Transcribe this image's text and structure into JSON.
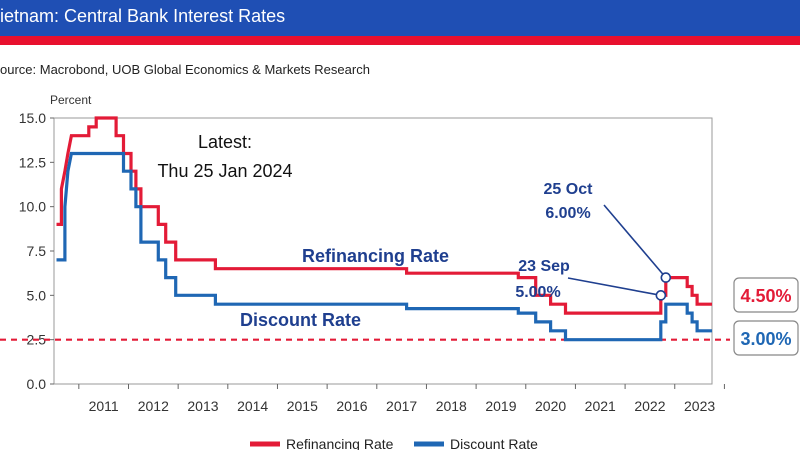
{
  "header": {
    "title": "ietnam: Central Bank Interest Rates",
    "brand_color": "#1f4fb4",
    "accent_color": "#e8102e"
  },
  "source": "ource: Macrobond, UOB Global Economics & Markets Research",
  "chart_data": {
    "type": "line",
    "ylabel": "Percent",
    "ylim": [
      0,
      15
    ],
    "xlim": [
      2010.5,
      2023.75
    ],
    "yticks": [
      "0.0",
      "2.5",
      "5.0",
      "7.5",
      "10.0",
      "12.5",
      "15.0"
    ],
    "xticks": [
      "2011",
      "2012",
      "2013",
      "2014",
      "2015",
      "2016",
      "2017",
      "2018",
      "2019",
      "2020",
      "2021",
      "2022",
      "2023"
    ],
    "grid": false,
    "legend_position": "bottom",
    "series": [
      {
        "name": "Refinancing Rate",
        "color": "#e31b37",
        "points": [
          [
            2010.55,
            9.0
          ],
          [
            2010.65,
            9.0
          ],
          [
            2010.65,
            11.0
          ],
          [
            2010.72,
            12.0
          ],
          [
            2010.78,
            13.0
          ],
          [
            2010.85,
            14.0
          ],
          [
            2011.2,
            14.0
          ],
          [
            2011.2,
            14.5
          ],
          [
            2011.35,
            14.5
          ],
          [
            2011.35,
            15.0
          ],
          [
            2011.75,
            15.0
          ],
          [
            2011.75,
            14.0
          ],
          [
            2011.9,
            14.0
          ],
          [
            2011.9,
            13.0
          ],
          [
            2012.05,
            13.0
          ],
          [
            2012.05,
            12.0
          ],
          [
            2012.15,
            12.0
          ],
          [
            2012.15,
            11.0
          ],
          [
            2012.25,
            11.0
          ],
          [
            2012.25,
            10.0
          ],
          [
            2012.6,
            10.0
          ],
          [
            2012.6,
            9.0
          ],
          [
            2012.75,
            9.0
          ],
          [
            2012.75,
            8.0
          ],
          [
            2012.95,
            8.0
          ],
          [
            2012.95,
            7.0
          ],
          [
            2013.75,
            7.0
          ],
          [
            2013.75,
            6.5
          ],
          [
            2017.6,
            6.5
          ],
          [
            2017.6,
            6.25
          ],
          [
            2019.85,
            6.25
          ],
          [
            2019.85,
            6.0
          ],
          [
            2020.2,
            6.0
          ],
          [
            2020.2,
            5.0
          ],
          [
            2020.5,
            5.0
          ],
          [
            2020.5,
            4.5
          ],
          [
            2020.8,
            4.5
          ],
          [
            2020.8,
            4.0
          ],
          [
            2022.72,
            4.0
          ],
          [
            2022.72,
            5.0
          ],
          [
            2022.82,
            5.0
          ],
          [
            2022.82,
            6.0
          ],
          [
            2023.25,
            6.0
          ],
          [
            2023.25,
            5.5
          ],
          [
            2023.35,
            5.5
          ],
          [
            2023.35,
            5.0
          ],
          [
            2023.45,
            5.0
          ],
          [
            2023.45,
            4.5
          ],
          [
            2023.75,
            4.5
          ]
        ],
        "end_label": "4.50%"
      },
      {
        "name": "Discount Rate",
        "color": "#1f67b4",
        "points": [
          [
            2010.55,
            7.0
          ],
          [
            2010.72,
            7.0
          ],
          [
            2010.72,
            10.0
          ],
          [
            2010.78,
            12.0
          ],
          [
            2010.85,
            13.0
          ],
          [
            2011.9,
            13.0
          ],
          [
            2011.9,
            12.0
          ],
          [
            2012.05,
            12.0
          ],
          [
            2012.05,
            11.0
          ],
          [
            2012.15,
            11.0
          ],
          [
            2012.15,
            10.0
          ],
          [
            2012.25,
            10.0
          ],
          [
            2012.25,
            8.0
          ],
          [
            2012.6,
            8.0
          ],
          [
            2012.6,
            7.0
          ],
          [
            2012.75,
            7.0
          ],
          [
            2012.75,
            6.0
          ],
          [
            2012.95,
            6.0
          ],
          [
            2012.95,
            5.0
          ],
          [
            2013.75,
            5.0
          ],
          [
            2013.75,
            4.5
          ],
          [
            2017.6,
            4.5
          ],
          [
            2017.6,
            4.25
          ],
          [
            2019.85,
            4.25
          ],
          [
            2019.85,
            4.0
          ],
          [
            2020.2,
            4.0
          ],
          [
            2020.2,
            3.5
          ],
          [
            2020.5,
            3.5
          ],
          [
            2020.5,
            3.0
          ],
          [
            2020.8,
            3.0
          ],
          [
            2020.8,
            2.5
          ],
          [
            2022.72,
            2.5
          ],
          [
            2022.72,
            3.5
          ],
          [
            2022.82,
            3.5
          ],
          [
            2022.82,
            4.5
          ],
          [
            2023.25,
            4.5
          ],
          [
            2023.25,
            4.0
          ],
          [
            2023.35,
            4.0
          ],
          [
            2023.35,
            3.5
          ],
          [
            2023.45,
            3.5
          ],
          [
            2023.45,
            3.0
          ],
          [
            2023.75,
            3.0
          ]
        ],
        "end_label": "3.00%"
      }
    ],
    "reference_line": {
      "y": 2.5,
      "color": "#e31b37",
      "style": "dashed"
    },
    "annotations": {
      "latest_line1": "Latest:",
      "latest_line2": "Thu 25 Jan 2024",
      "refi_label": "Refinancing Rate",
      "disc_label": "Discount Rate",
      "oct_line1": "25 Oct",
      "oct_line2": "6.00%",
      "sep_line1": "23 Sep",
      "sep_line2": "5.00%",
      "oct_point": [
        2022.82,
        6.0
      ],
      "sep_point": [
        2022.72,
        5.0
      ]
    }
  }
}
